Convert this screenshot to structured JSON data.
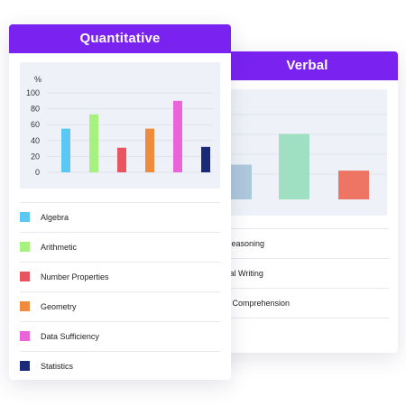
{
  "verbal_card": {
    "title": "Verbal",
    "legend": [
      {
        "label": "Reasoning",
        "color": "#aec8dc"
      },
      {
        "label": "cal Writing",
        "color": "#9fe0c2"
      },
      {
        "label": "g Comprehension",
        "color": "#ee7564"
      }
    ]
  },
  "quant_card": {
    "title": "Quantitative",
    "legend": [
      {
        "label": "Algebra",
        "color": "#5ac8f2"
      },
      {
        "label": "Arithmetic",
        "color": "#a6f27e"
      },
      {
        "label": "Number Properties",
        "color": "#e8545f"
      },
      {
        "label": "Geometry",
        "color": "#f08a3c"
      },
      {
        "label": "Data Sufficiency",
        "color": "#ea63d8"
      },
      {
        "label": "Statistics",
        "color": "#1a2a78"
      }
    ]
  },
  "chart_data": [
    {
      "type": "bar",
      "title": "",
      "ylabel": "%",
      "ylim": [
        0,
        100
      ],
      "yticks": [
        "100",
        "80",
        "60",
        "40",
        "20",
        "0"
      ],
      "grid": true,
      "categories": [
        "Algebra",
        "Arithmetic",
        "Number Properties",
        "Geometry",
        "Data Sufficiency",
        "Statistics"
      ],
      "values": [
        55,
        73,
        31,
        55,
        90,
        32
      ],
      "colors": [
        "#5ac8f2",
        "#a6f27e",
        "#e8545f",
        "#f08a3c",
        "#ea63d8",
        "#1a2a78"
      ]
    },
    {
      "type": "bar",
      "title": "",
      "categories": [
        "Reasoning",
        "cal Writing",
        "g Comprehension"
      ],
      "values": [
        35,
        66,
        29
      ],
      "colors": [
        "#aec8dc",
        "#9fe0c2",
        "#ee7564"
      ]
    }
  ]
}
